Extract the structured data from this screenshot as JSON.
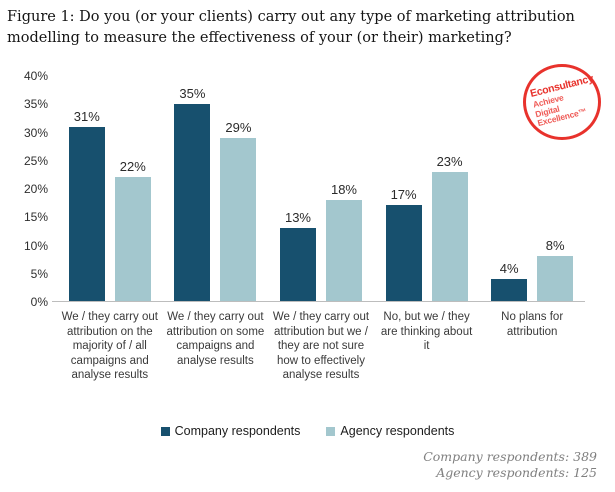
{
  "title_lines": [
    "Figure 1: Do you (or your clients) carry out any type of marketing attribution",
    "modelling to measure the effectiveness of your (or their) marketing?"
  ],
  "logo": {
    "brand": "Econsultancy",
    "tagline_lines": [
      "Achieve",
      "Digital",
      "Excellence™"
    ]
  },
  "colors": {
    "company_bar": "#17506e",
    "agency_bar": "#a3c7ce",
    "logo_red": "#e8322c",
    "axis_line": "#bdbdbd",
    "footer_text": "#7f7f7f"
  },
  "chart_data": {
    "type": "bar",
    "title": "Figure 1: Do you (or your clients) carry out any type of marketing attribution modelling to measure the effectiveness of your (or their) marketing?",
    "categories": [
      "We / they carry out attribution on the majority of / all campaigns and analyse results",
      "We / they carry out attribution on some campaigns and analyse results",
      "We / they carry out attribution but we / they are not sure how to effectively analyse results",
      "No, but we / they are thinking about it",
      "No plans for attribution"
    ],
    "series": [
      {
        "name": "Company respondents",
        "color": "#17506e",
        "values": [
          31,
          35,
          13,
          17,
          4
        ]
      },
      {
        "name": "Agency respondents",
        "color": "#a3c7ce",
        "values": [
          22,
          29,
          18,
          23,
          8
        ]
      }
    ],
    "xlabel": "",
    "ylabel": "",
    "ylim": [
      0,
      40
    ],
    "y_ticks": [
      "40%",
      "35%",
      "30%",
      "25%",
      "20%",
      "15%",
      "10%",
      "5%",
      "0%"
    ],
    "value_suffix": "%",
    "grid": false,
    "legend_position": "bottom"
  },
  "footer": {
    "lines": [
      "Company respondents: 389",
      "Agency respondents: 125"
    ]
  }
}
